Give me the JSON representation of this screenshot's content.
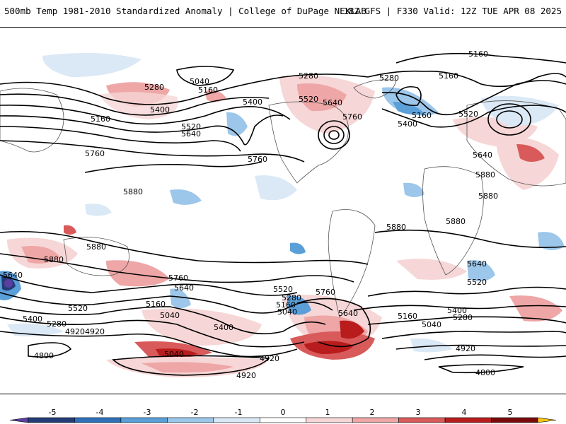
{
  "header": {
    "left_title": "500mb Temp 1981-2010 Standardized Anomaly | College of DuPage NEXLAB",
    "right_title": "18Z GFS | F330 Valid: 12Z TUE APR 08 2025"
  },
  "contour_labels": [
    {
      "text": "5160"
    },
    {
      "text": "5160"
    },
    {
      "text": "5280"
    },
    {
      "text": "5040"
    },
    {
      "text": "5160"
    },
    {
      "text": "5280"
    },
    {
      "text": "5400"
    },
    {
      "text": "5400"
    },
    {
      "text": "5160"
    },
    {
      "text": "5520"
    },
    {
      "text": "5640"
    },
    {
      "text": "5760"
    },
    {
      "text": "5520"
    },
    {
      "text": "5640"
    },
    {
      "text": "5280"
    },
    {
      "text": "5160"
    },
    {
      "text": "5400"
    },
    {
      "text": "5520"
    },
    {
      "text": "5760"
    },
    {
      "text": "5640"
    },
    {
      "text": "5760"
    },
    {
      "text": "5880"
    },
    {
      "text": "5880"
    },
    {
      "text": "5880"
    },
    {
      "text": "5880"
    },
    {
      "text": "5880"
    },
    {
      "text": "5880"
    },
    {
      "text": "5880"
    },
    {
      "text": "5640"
    },
    {
      "text": "5760"
    },
    {
      "text": "5640"
    },
    {
      "text": "5520"
    },
    {
      "text": "5760"
    },
    {
      "text": "5640"
    },
    {
      "text": "5520"
    },
    {
      "text": "5280"
    },
    {
      "text": "5160"
    },
    {
      "text": "5040"
    },
    {
      "text": "5400"
    },
    {
      "text": "5280"
    },
    {
      "text": "4920"
    },
    {
      "text": "4800"
    },
    {
      "text": "5640"
    },
    {
      "text": "5520"
    },
    {
      "text": "5040"
    },
    {
      "text": "5160"
    },
    {
      "text": "5400"
    },
    {
      "text": "5040"
    },
    {
      "text": "5160"
    },
    {
      "text": "5400"
    },
    {
      "text": "5280"
    },
    {
      "text": "5040"
    },
    {
      "text": "4920"
    },
    {
      "text": "4920"
    },
    {
      "text": "4920"
    },
    {
      "text": "4920"
    },
    {
      "text": "4800"
    }
  ],
  "colorbar": {
    "ticks": [
      "-5",
      "-4",
      "-3",
      "-2",
      "-1",
      "0",
      "1",
      "2",
      "3",
      "4",
      "5"
    ],
    "colors": [
      "#5b3fa0",
      "#243d78",
      "#2f6fb8",
      "#5b9fd8",
      "#9cc6ea",
      "#dbe9f6",
      "#ffffff",
      "#f6d6d6",
      "#eea6a6",
      "#d95a5a",
      "#b81c1c",
      "#7a0a0a",
      "#f5c518"
    ]
  }
}
